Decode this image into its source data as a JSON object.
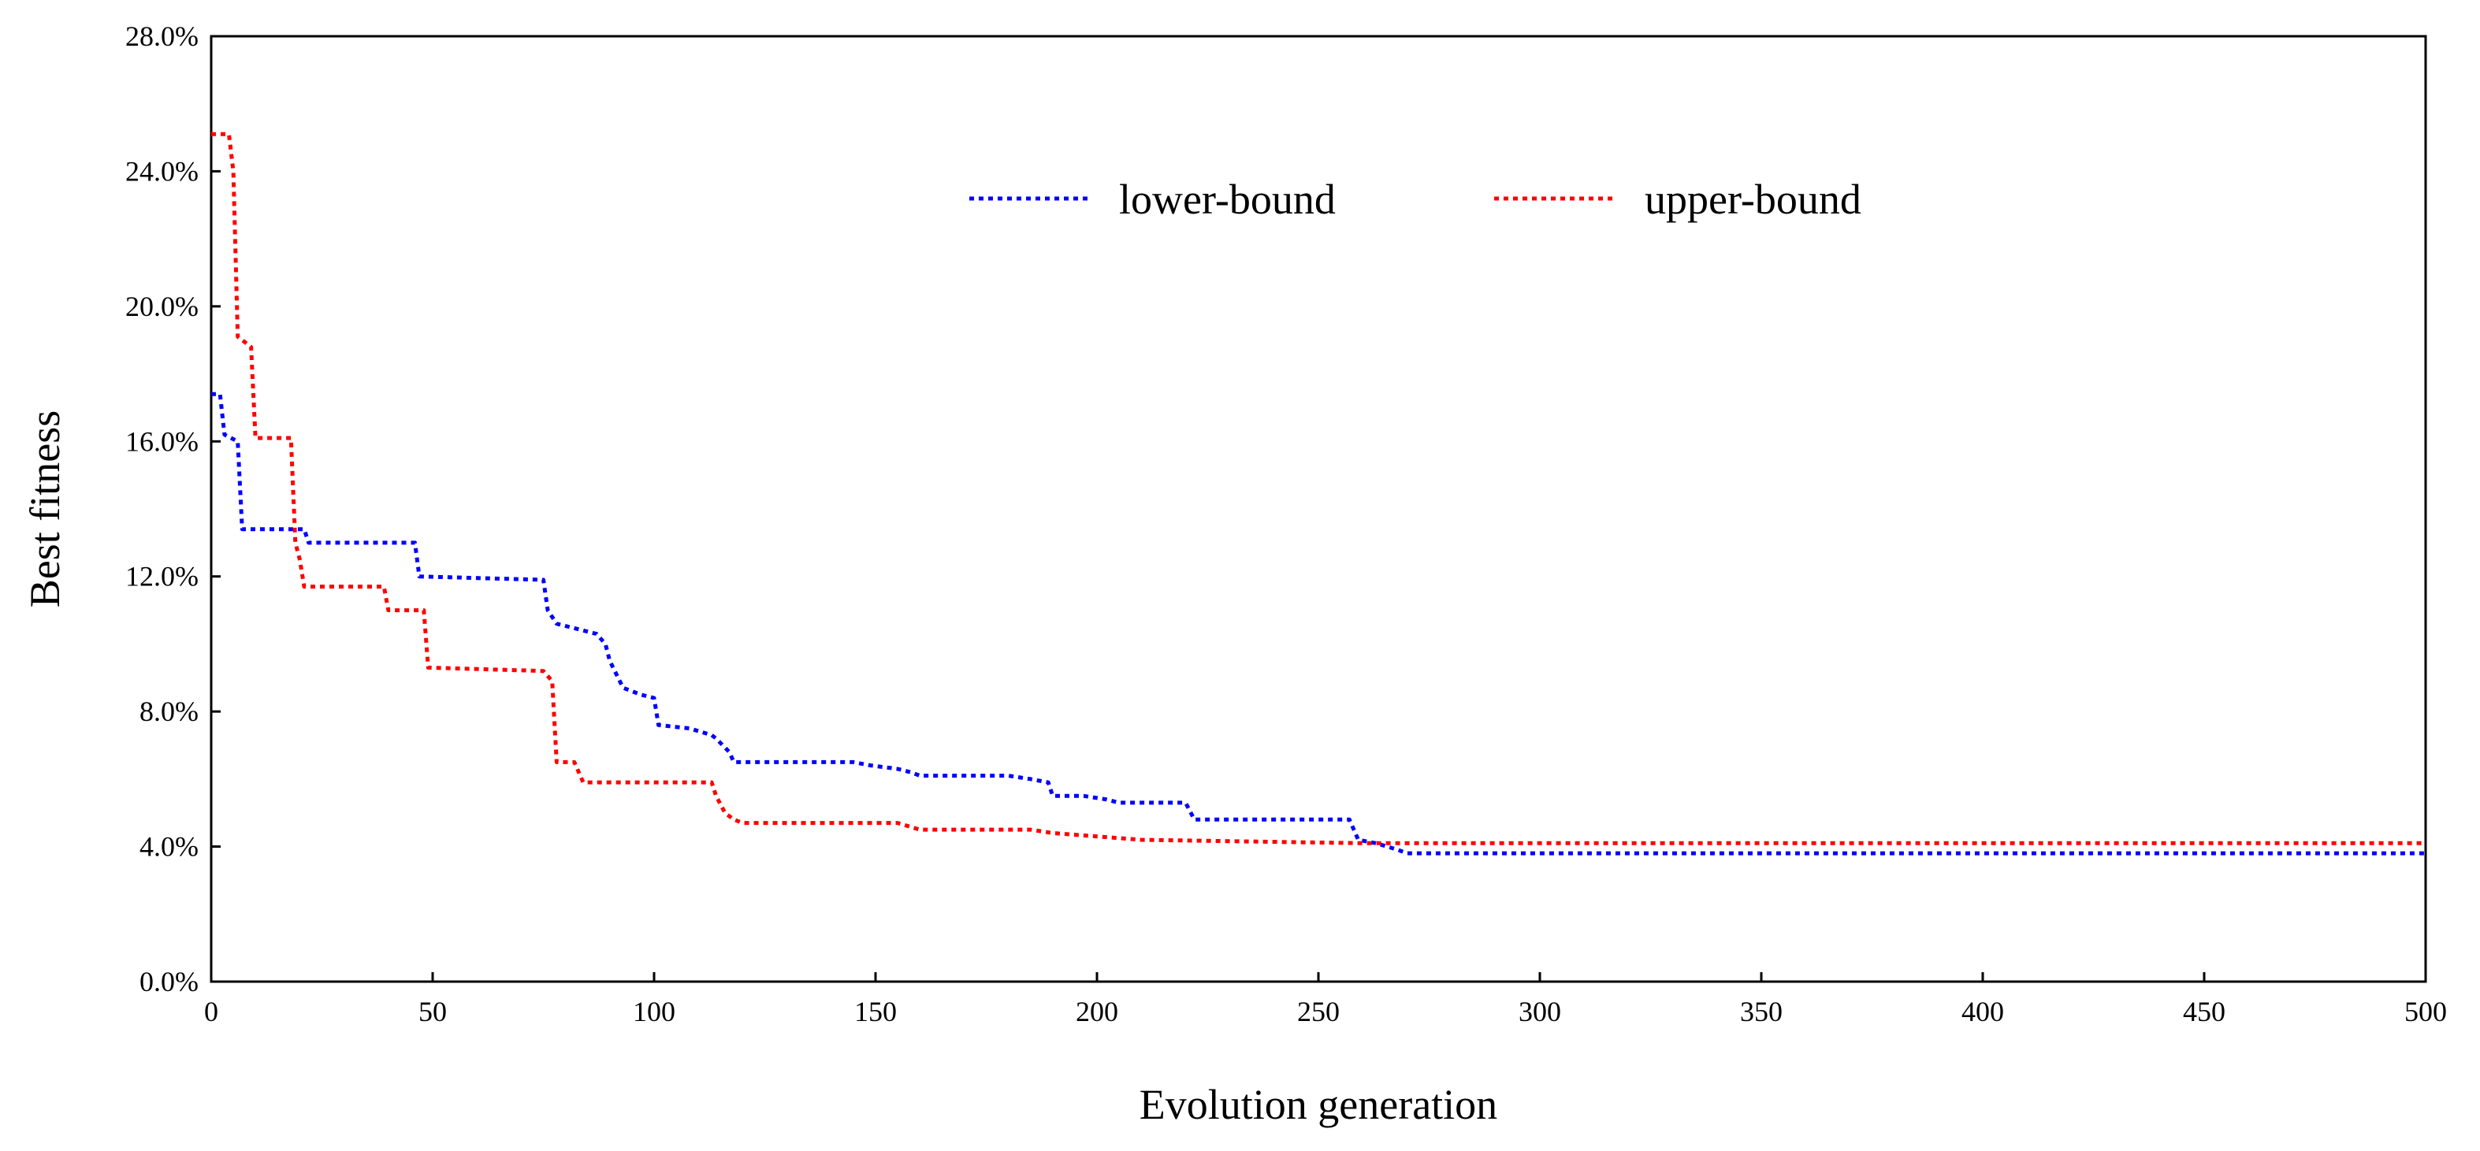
{
  "chart_data": {
    "type": "line",
    "title": "",
    "xlabel": "Evolution generation",
    "ylabel": "Best fitness",
    "xlim": [
      0,
      500
    ],
    "ylim": [
      0,
      28
    ],
    "xticks": [
      0,
      50,
      100,
      150,
      200,
      250,
      300,
      350,
      400,
      450,
      500
    ],
    "xtick_labels": [
      "0",
      "50",
      "100",
      "150",
      "200",
      "250",
      "300",
      "350",
      "400",
      "450",
      "500"
    ],
    "yticks": [
      0,
      4,
      8,
      12,
      16,
      20,
      24,
      28
    ],
    "ytick_labels": [
      "0.0%",
      "4.0%",
      "8.0%",
      "12.0%",
      "16.0%",
      "20.0%",
      "24.0%",
      "28.0%"
    ],
    "grid": false,
    "legend_position": "top-center",
    "series": [
      {
        "name": "lower-bound",
        "color": "#0000ff",
        "style": "dotted-step",
        "x": [
          0,
          2,
          3,
          6,
          7,
          21,
          22,
          46,
          47,
          75,
          76,
          78,
          87,
          89,
          90,
          93,
          97,
          100,
          101,
          108,
          113,
          114,
          117,
          118,
          145,
          149,
          155,
          158,
          160,
          180,
          185,
          189,
          190,
          197,
          202,
          205,
          220,
          222,
          257,
          259,
          263,
          268,
          270,
          500
        ],
        "values": [
          17.4,
          17.4,
          16.2,
          16.0,
          13.4,
          13.4,
          13.0,
          13.0,
          12.0,
          11.9,
          11.0,
          10.6,
          10.3,
          10.0,
          9.5,
          8.7,
          8.5,
          8.4,
          7.6,
          7.5,
          7.3,
          7.2,
          6.8,
          6.5,
          6.5,
          6.4,
          6.3,
          6.2,
          6.1,
          6.1,
          6.0,
          5.9,
          5.5,
          5.5,
          5.4,
          5.3,
          5.3,
          4.8,
          4.8,
          4.2,
          4.1,
          3.9,
          3.8,
          3.8
        ]
      },
      {
        "name": "upper-bound",
        "color": "#ff0000",
        "style": "dotted-step",
        "x": [
          0,
          4,
          5,
          6,
          9,
          10,
          18,
          19,
          20,
          21,
          39,
          40,
          48,
          49,
          75,
          77,
          78,
          82,
          84,
          113,
          114,
          116,
          118,
          120,
          155,
          160,
          185,
          190,
          200,
          210,
          260,
          500
        ],
        "values": [
          25.1,
          25.1,
          24.0,
          19.1,
          18.8,
          16.1,
          16.1,
          13.0,
          12.5,
          11.7,
          11.7,
          11.0,
          11.0,
          9.3,
          9.2,
          8.9,
          6.5,
          6.5,
          5.9,
          5.9,
          5.5,
          5.0,
          4.8,
          4.7,
          4.7,
          4.5,
          4.5,
          4.4,
          4.3,
          4.2,
          4.1,
          4.1
        ]
      }
    ]
  }
}
